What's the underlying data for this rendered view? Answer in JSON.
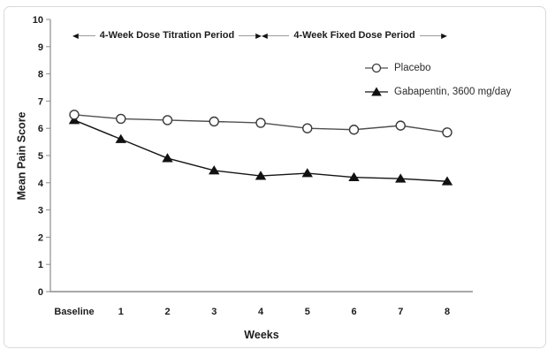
{
  "figure": {
    "background": "#ffffff",
    "border_color": "#dadada"
  },
  "chart_data": {
    "type": "line",
    "title": "",
    "xlabel": "Weeks",
    "ylabel": "Mean Pain Score",
    "categories": [
      "Baseline",
      "1",
      "2",
      "3",
      "4",
      "5",
      "6",
      "7",
      "8"
    ],
    "ylim": [
      0,
      10
    ],
    "yticks": [
      0,
      1,
      2,
      3,
      4,
      5,
      6,
      7,
      8,
      9,
      10
    ],
    "grid": false,
    "legend_position": "upper-right-inside",
    "axis_color": "#8c8c8c",
    "text_color": "#1c1c1c",
    "series": [
      {
        "name": "Placebo",
        "marker": "open-circle",
        "line_color": "#4f4f4f",
        "marker_fill": "#ffffff",
        "marker_stroke": "#3a3a3a",
        "values": [
          6.5,
          6.35,
          6.3,
          6.25,
          6.2,
          6.0,
          5.95,
          6.1,
          5.85
        ]
      },
      {
        "name": "Gabapentin, 3600 mg/day",
        "marker": "filled-triangle",
        "line_color": "#141414",
        "marker_fill": "#111111",
        "marker_stroke": "#111111",
        "values": [
          6.3,
          5.6,
          4.9,
          4.45,
          4.25,
          4.35,
          4.2,
          4.15,
          4.05
        ]
      }
    ],
    "annotations": [
      {
        "label": "4-Week Dose Titration Period",
        "from_category": "Baseline",
        "to_category": "4",
        "arrow": "double-headed"
      },
      {
        "label": "4-Week Fixed Dose Period",
        "from_category": "4",
        "to_category": "8",
        "arrow": "double-headed"
      }
    ]
  }
}
